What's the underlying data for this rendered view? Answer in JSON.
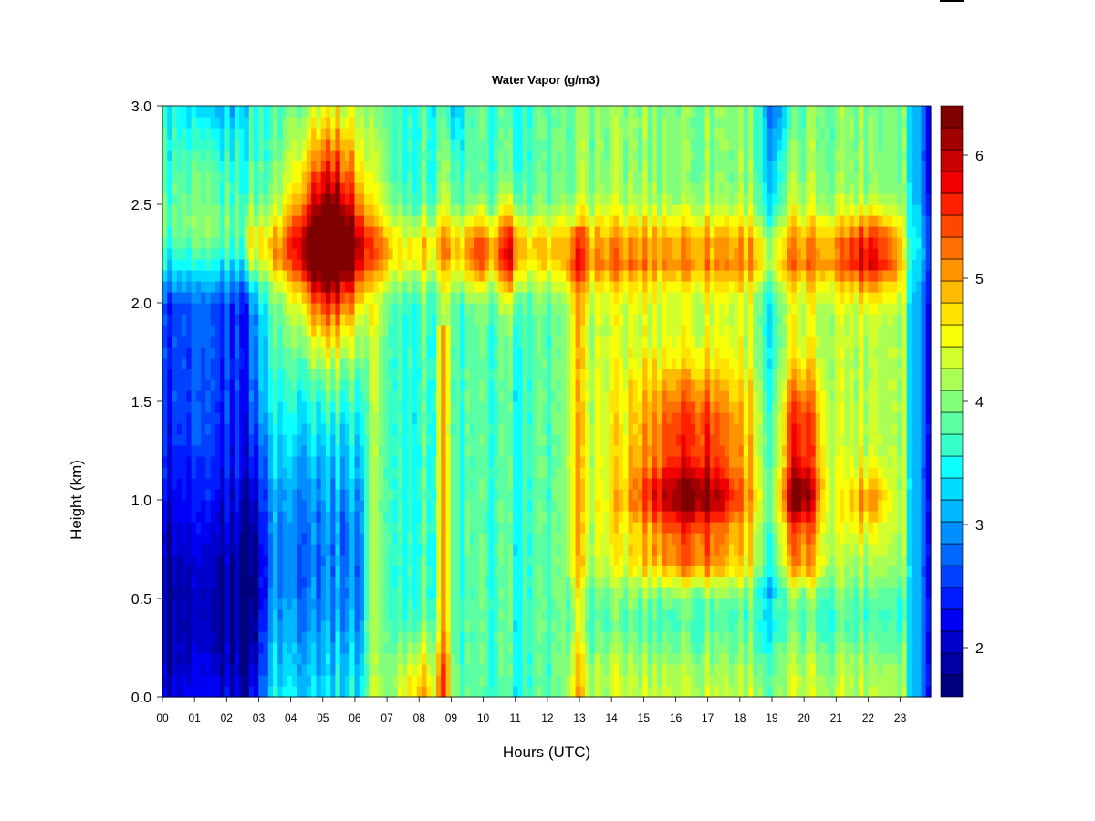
{
  "chart_data": {
    "type": "heatmap",
    "title": "Water Vapor (g/m3)",
    "xlabel": "Hours (UTC)",
    "ylabel": "Height (km)",
    "x_ticks": [
      "00",
      "01",
      "02",
      "03",
      "04",
      "05",
      "06",
      "07",
      "08",
      "09",
      "10",
      "11",
      "12",
      "13",
      "14",
      "15",
      "16",
      "17",
      "18",
      "19",
      "20",
      "21",
      "22",
      "23"
    ],
    "y_ticks": [
      "0.0",
      "0.5",
      "1.0",
      "1.5",
      "2.0",
      "2.5",
      "3.0"
    ],
    "xlim": [
      0,
      23.95
    ],
    "ylim": [
      0,
      3.0
    ],
    "colorbar": {
      "range": [
        1.6,
        6.4
      ],
      "ticks": [
        "2",
        "3",
        "4",
        "5",
        "6"
      ],
      "levels": 24,
      "colors": [
        "#00007f",
        "#0000a6",
        "#0000cd",
        "#0000f4",
        "#001bff",
        "#0041ff",
        "#0068ff",
        "#008fff",
        "#00b6ff",
        "#00dcff",
        "#0effff",
        "#36ffc8",
        "#5bffa2",
        "#83ff7b",
        "#aaff54",
        "#d1ff2d",
        "#f8ff06",
        "#ffe200",
        "#ffbb00",
        "#ff9400",
        "#ff6e00",
        "#ff4700",
        "#ff2000",
        "#f00000",
        "#c90000",
        "#a20000",
        "#7f0000"
      ]
    },
    "features": [
      {
        "x": 0.9,
        "y": 0.45,
        "value": 2.0
      },
      {
        "x": 3.6,
        "y": 0.45,
        "value": 2.8
      },
      {
        "x": 5.2,
        "y": 2.27,
        "value": 6.2
      },
      {
        "x": 8.8,
        "y": 1.0,
        "value": 5.1
      },
      {
        "x": 8.0,
        "y": 0.05,
        "value": 4.7
      },
      {
        "x": 10.8,
        "y": 2.27,
        "value": 5.5
      },
      {
        "x": 16.6,
        "y": 1.0,
        "value": 5.6
      },
      {
        "x": 16.5,
        "y": 1.35,
        "value": 5.4
      },
      {
        "x": 19.9,
        "y": 1.0,
        "value": 5.6
      },
      {
        "x": 22.0,
        "y": 2.25,
        "value": 5.0
      },
      {
        "x": 19.4,
        "y": 2.95,
        "value": 2.8
      }
    ]
  }
}
